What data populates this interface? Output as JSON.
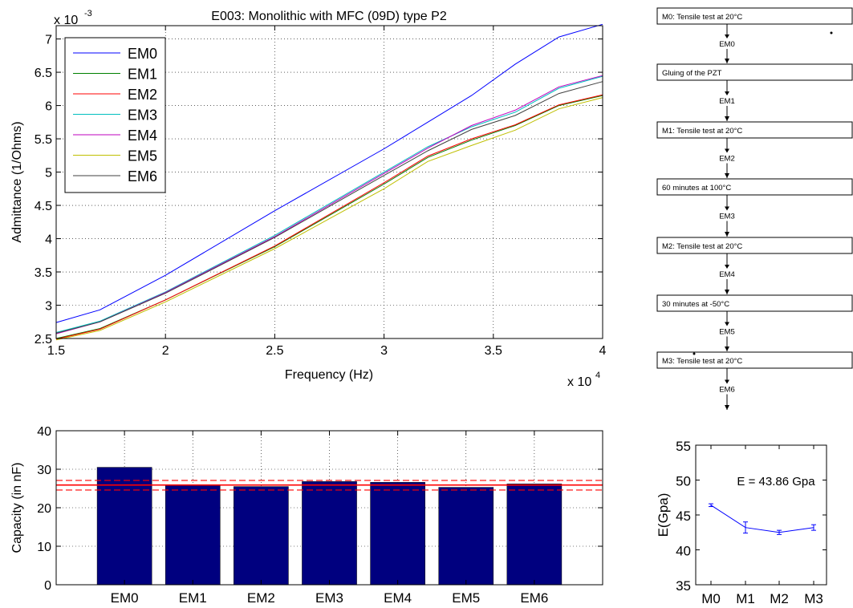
{
  "colors": {
    "EM0": "#0000ff",
    "EM1": "#008000",
    "EM2": "#ff0000",
    "EM3": "#00bfbf",
    "EM4": "#bf00bf",
    "EM5": "#bfbf00",
    "EM6": "#404040",
    "bar": "#00007f",
    "ref_line": "#ff0000",
    "modulus_line": "#0000ff"
  },
  "chart_data": [
    {
      "type": "line",
      "title": "E003: Monolithic with MFC (09D) type P2",
      "xlabel": "Frequency (Hz)",
      "ylabel": "Admittance (1/Ohms)",
      "x_exponent_label": "x 10",
      "x_exponent": "4",
      "y_exponent_label": "x 10",
      "y_exponent": "-3",
      "xlim": [
        1.5,
        4.0
      ],
      "ylim": [
        2.5,
        7.2
      ],
      "xticks": [
        "1.5",
        "2",
        "2.5",
        "3",
        "3.5",
        "4"
      ],
      "yticks": [
        "2.5",
        "3",
        "3.5",
        "4",
        "4.5",
        "5",
        "5.5",
        "6",
        "6.5",
        "7"
      ],
      "grid": true,
      "legend": "top-left",
      "x": [
        1.5,
        1.7,
        2.0,
        2.5,
        3.0,
        3.2,
        3.4,
        3.6,
        3.8,
        4.0
      ],
      "series": [
        {
          "name": "EM0",
          "values": [
            2.74,
            2.93,
            3.45,
            4.42,
            5.35,
            5.75,
            6.15,
            6.62,
            7.03,
            7.22
          ]
        },
        {
          "name": "EM1",
          "values": [
            2.5,
            2.65,
            3.08,
            3.88,
            4.82,
            5.22,
            5.48,
            5.7,
            6.0,
            6.15
          ]
        },
        {
          "name": "EM2",
          "values": [
            2.49,
            2.64,
            3.08,
            3.89,
            4.84,
            5.24,
            5.5,
            5.71,
            6.01,
            6.16
          ]
        },
        {
          "name": "EM3",
          "values": [
            2.59,
            2.76,
            3.2,
            4.05,
            5.0,
            5.38,
            5.68,
            5.9,
            6.26,
            6.44
          ]
        },
        {
          "name": "EM4",
          "values": [
            2.57,
            2.75,
            3.19,
            4.03,
            4.98,
            5.36,
            5.7,
            5.93,
            6.28,
            6.45
          ]
        },
        {
          "name": "EM5",
          "values": [
            2.48,
            2.62,
            3.05,
            3.85,
            4.75,
            5.16,
            5.4,
            5.63,
            5.95,
            6.12
          ]
        },
        {
          "name": "EM6",
          "values": [
            2.58,
            2.75,
            3.18,
            4.02,
            4.95,
            5.32,
            5.64,
            5.85,
            6.18,
            6.36
          ]
        }
      ]
    },
    {
      "type": "bar",
      "categories": [
        "EM0",
        "EM1",
        "EM2",
        "EM3",
        "EM4",
        "EM5",
        "EM6"
      ],
      "values": [
        30.5,
        25.8,
        25.5,
        26.8,
        26.6,
        25.3,
        26.2
      ],
      "ylabel": "Capacity (in nF)",
      "ylim": [
        0,
        40
      ],
      "yticks": [
        "0",
        "10",
        "20",
        "30",
        "40"
      ],
      "grid": true,
      "reference_lines": {
        "mean": 25.9,
        "upper": 27.1,
        "lower": 24.6
      }
    },
    {
      "type": "line",
      "categories": [
        "M0",
        "M1",
        "M2",
        "M3"
      ],
      "values": [
        46.4,
        43.2,
        42.5,
        43.2
      ],
      "error": [
        0.2,
        0.8,
        0.3,
        0.4
      ],
      "ylabel": "E(Gpa)",
      "ylim": [
        35,
        55
      ],
      "yticks": [
        "35",
        "40",
        "45",
        "50",
        "55"
      ],
      "annotation": "E = 43.86 Gpa",
      "grid": false
    }
  ],
  "flowchart": {
    "steps": [
      "M0: Tensile test at 20°C",
      "Gluing of the PZT",
      "M1: Tensile test at 20°C",
      "60 minutes at 100°C",
      "M2: Tensile test at 20°C",
      "30 minutes at -50°C",
      "M3: Tensile test at 20°C"
    ],
    "transitions": [
      "EM0",
      "EM1",
      "EM2",
      "EM3",
      "EM4",
      "EM5",
      "EM6"
    ]
  }
}
